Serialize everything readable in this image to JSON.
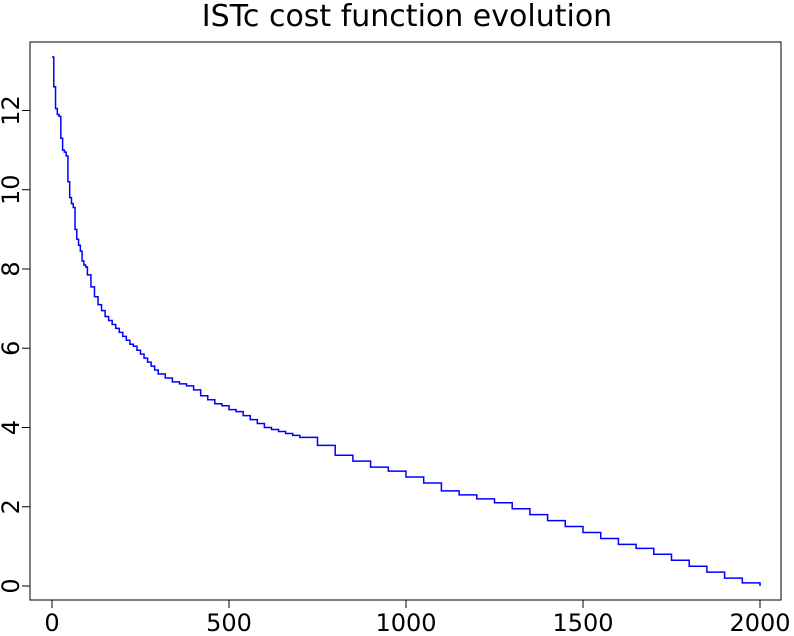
{
  "chart_data": {
    "type": "line",
    "title": "ISTc cost function evolution",
    "xlabel": "",
    "ylabel": "",
    "xlim": [
      0,
      2000
    ],
    "ylim": [
      0,
      13.4
    ],
    "x_ticks": [
      0,
      500,
      1000,
      1500,
      2000
    ],
    "y_ticks": [
      0,
      2,
      4,
      6,
      8,
      10,
      12
    ],
    "grid": false,
    "legend": "none",
    "series": [
      {
        "color": "#0000ff",
        "x": [
          0,
          5,
          10,
          15,
          20,
          25,
          30,
          35,
          40,
          45,
          50,
          55,
          60,
          65,
          70,
          75,
          80,
          85,
          90,
          95,
          100,
          110,
          120,
          130,
          140,
          150,
          160,
          170,
          180,
          190,
          200,
          210,
          220,
          230,
          240,
          250,
          260,
          270,
          280,
          290,
          300,
          320,
          340,
          360,
          380,
          400,
          420,
          440,
          460,
          480,
          500,
          520,
          540,
          560,
          580,
          600,
          620,
          640,
          660,
          680,
          700,
          750,
          800,
          850,
          900,
          950,
          1000,
          1050,
          1100,
          1150,
          1200,
          1250,
          1300,
          1350,
          1400,
          1450,
          1500,
          1550,
          1600,
          1650,
          1700,
          1750,
          1800,
          1850,
          1900,
          1950,
          2000
        ],
        "y": [
          13.35,
          12.6,
          12.05,
          11.9,
          11.85,
          11.3,
          11.0,
          10.95,
          10.85,
          10.2,
          9.8,
          9.65,
          9.55,
          9.0,
          8.75,
          8.6,
          8.45,
          8.2,
          8.1,
          8.05,
          7.85,
          7.55,
          7.3,
          7.1,
          6.95,
          6.8,
          6.7,
          6.6,
          6.5,
          6.4,
          6.3,
          6.2,
          6.1,
          6.05,
          5.95,
          5.85,
          5.75,
          5.65,
          5.55,
          5.45,
          5.35,
          5.25,
          5.15,
          5.1,
          5.05,
          4.95,
          4.8,
          4.7,
          4.6,
          4.55,
          4.45,
          4.4,
          4.3,
          4.2,
          4.1,
          4.0,
          3.95,
          3.9,
          3.85,
          3.8,
          3.75,
          3.55,
          3.3,
          3.15,
          3.0,
          2.9,
          2.75,
          2.6,
          2.4,
          2.3,
          2.2,
          2.1,
          1.95,
          1.8,
          1.65,
          1.5,
          1.35,
          1.2,
          1.05,
          0.95,
          0.8,
          0.65,
          0.5,
          0.35,
          0.2,
          0.08,
          0.0
        ]
      }
    ]
  }
}
